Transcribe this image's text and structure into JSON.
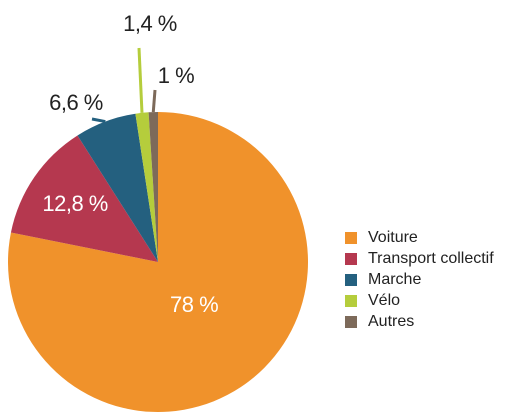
{
  "chart_data": {
    "type": "pie",
    "categories": [
      "Voiture",
      "Transport collectif",
      "Marche",
      "Vélo",
      "Autres"
    ],
    "values": [
      78,
      12.8,
      6.6,
      1.4,
      1
    ],
    "value_labels": [
      "78 %",
      "12,8 %",
      "6,6 %",
      "1,4 %",
      "1 %"
    ],
    "colors": [
      "#f0922b",
      "#b5384f",
      "#24607f",
      "#b5cd3c",
      "#7d6a5a"
    ],
    "legend": "right"
  }
}
